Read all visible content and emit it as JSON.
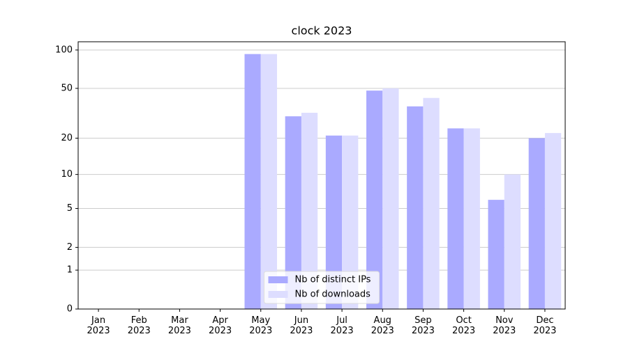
{
  "chart_data": {
    "type": "bar",
    "title": "clock 2023",
    "categories": [
      "Jan\n2023",
      "Feb\n2023",
      "Mar\n2023",
      "Apr\n2023",
      "May\n2023",
      "Jun\n2023",
      "Jul\n2023",
      "Aug\n2023",
      "Sep\n2023",
      "Oct\n2023",
      "Nov\n2023",
      "Dec\n2023"
    ],
    "series": [
      {
        "name": "Nb of distinct IPs",
        "color": "#aaaaff",
        "values": [
          0,
          0,
          0,
          0,
          93,
          30,
          21,
          48,
          36,
          24,
          6,
          20
        ]
      },
      {
        "name": "Nb of downloads",
        "color": "#ddddff",
        "values": [
          0,
          0,
          0,
          0,
          93,
          32,
          21,
          50,
          42,
          24,
          10,
          22
        ]
      }
    ],
    "yscale": "log1p",
    "ylim": [
      0,
      116
    ],
    "yticks": [
      0,
      1,
      2,
      5,
      10,
      20,
      50,
      100
    ],
    "grid": true,
    "legend": "lower center"
  }
}
